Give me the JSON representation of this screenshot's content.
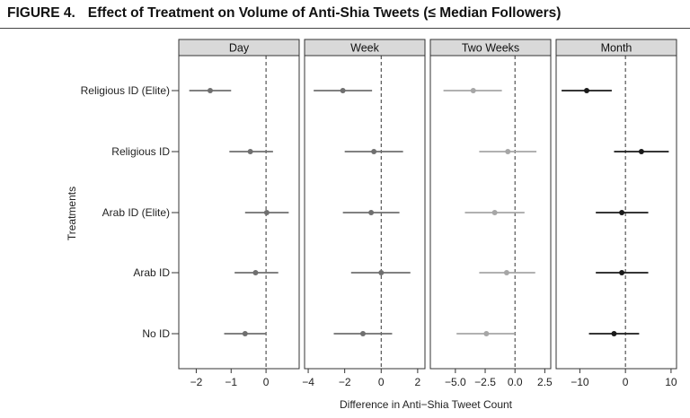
{
  "figure": {
    "label": "FIGURE 4.",
    "title": "Effect of Treatment on Volume of Anti-Shia Tweets (≤ Median Followers)"
  },
  "chart_data": {
    "type": "dot-and-whisker (faceted)",
    "ylabel": "Treatments",
    "xlabel": "Difference in Anti−Shia Tweet Count",
    "categories": [
      "Religious ID (Elite)",
      "Religious ID",
      "Arab ID (Elite)",
      "Arab ID",
      "No ID"
    ],
    "reference_line": 0,
    "panels": [
      {
        "name": "Day",
        "color": "#6f6f6f",
        "xlim": [
          -2.5,
          0.95
        ],
        "ticks": [
          -2,
          -1,
          0
        ],
        "tick_labels": [
          "−2",
          "−1",
          "0"
        ],
        "points": [
          {
            "category": "Religious ID (Elite)",
            "estimate": -1.6,
            "lower": -2.2,
            "upper": -1.0
          },
          {
            "category": "Religious ID",
            "estimate": -0.45,
            "lower": -1.05,
            "upper": 0.2
          },
          {
            "category": "Arab ID (Elite)",
            "estimate": 0.02,
            "lower": -0.6,
            "upper": 0.65
          },
          {
            "category": "Arab ID",
            "estimate": -0.3,
            "lower": -0.9,
            "upper": 0.35
          },
          {
            "category": "No ID",
            "estimate": -0.6,
            "lower": -1.2,
            "upper": 0.0
          }
        ]
      },
      {
        "name": "Week",
        "color": "#6f6f6f",
        "xlim": [
          -4.2,
          2.4
        ],
        "ticks": [
          -4,
          -2,
          0,
          2
        ],
        "tick_labels": [
          "−4",
          "−2",
          "0",
          "2"
        ],
        "points": [
          {
            "category": "Religious ID (Elite)",
            "estimate": -2.1,
            "lower": -3.7,
            "upper": -0.5
          },
          {
            "category": "Religious ID",
            "estimate": -0.4,
            "lower": -2.0,
            "upper": 1.2
          },
          {
            "category": "Arab ID (Elite)",
            "estimate": -0.55,
            "lower": -2.1,
            "upper": 1.0
          },
          {
            "category": "Arab ID",
            "estimate": 0.0,
            "lower": -1.65,
            "upper": 1.6
          },
          {
            "category": "No ID",
            "estimate": -1.0,
            "lower": -2.6,
            "upper": 0.6
          }
        ]
      },
      {
        "name": "Two Weeks",
        "color": "#a6a6a6",
        "xlim": [
          -7.1,
          3.0
        ],
        "ticks": [
          -5.0,
          -2.5,
          0.0,
          2.5
        ],
        "tick_labels": [
          "−5.0",
          "−2.5",
          "0.0",
          "2.5"
        ],
        "points": [
          {
            "category": "Religious ID (Elite)",
            "estimate": -3.5,
            "lower": -6.0,
            "upper": -1.1
          },
          {
            "category": "Religious ID",
            "estimate": -0.6,
            "lower": -3.0,
            "upper": 1.8
          },
          {
            "category": "Arab ID (Elite)",
            "estimate": -1.7,
            "lower": -4.2,
            "upper": 0.8
          },
          {
            "category": "Arab ID",
            "estimate": -0.7,
            "lower": -3.0,
            "upper": 1.7
          },
          {
            "category": "No ID",
            "estimate": -2.4,
            "lower": -4.9,
            "upper": 0.0
          }
        ]
      },
      {
        "name": "Month",
        "color": "#1a1a1a",
        "xlim": [
          -15.2,
          11.2
        ],
        "ticks": [
          -10,
          0,
          10
        ],
        "tick_labels": [
          "−10",
          "0",
          "10"
        ],
        "points": [
          {
            "category": "Religious ID (Elite)",
            "estimate": -8.5,
            "lower": -14.0,
            "upper": -3.0
          },
          {
            "category": "Religious ID",
            "estimate": 3.5,
            "lower": -2.5,
            "upper": 9.5
          },
          {
            "category": "Arab ID (Elite)",
            "estimate": -0.8,
            "lower": -6.5,
            "upper": 5.0
          },
          {
            "category": "Arab ID",
            "estimate": -0.8,
            "lower": -6.5,
            "upper": 5.0
          },
          {
            "category": "No ID",
            "estimate": -2.5,
            "lower": -8.0,
            "upper": 3.0
          }
        ]
      }
    ]
  }
}
